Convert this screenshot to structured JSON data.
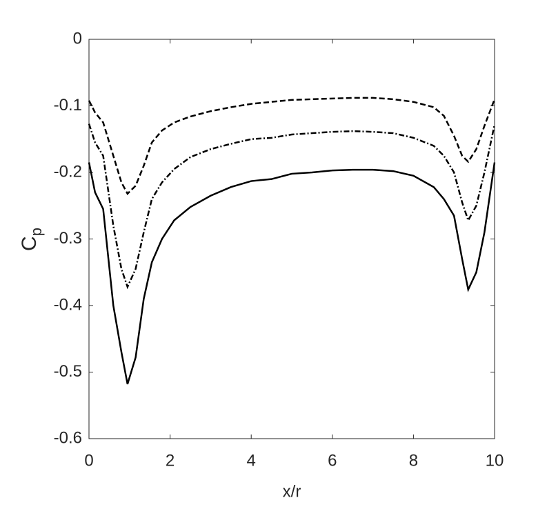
{
  "chart_data": {
    "type": "line",
    "xlabel": "x/r",
    "ylabel": "C",
    "ylabel_subscript": "p",
    "x": [
      0,
      0.15,
      0.35,
      0.6,
      0.8,
      0.95,
      1.15,
      1.35,
      1.55,
      1.8,
      2.1,
      2.5,
      3,
      3.5,
      4,
      4.5,
      5,
      5.5,
      6,
      6.5,
      7,
      7.5,
      8,
      8.5,
      8.75,
      9,
      9.2,
      9.35,
      9.55,
      9.75,
      10
    ],
    "series": [
      {
        "color": "#000000",
        "dash": "solid",
        "values": [
          -0.185,
          -0.23,
          -0.255,
          -0.4,
          -0.47,
          -0.518,
          -0.478,
          -0.39,
          -0.335,
          -0.3,
          -0.272,
          -0.252,
          -0.235,
          -0.222,
          -0.213,
          -0.21,
          -0.202,
          -0.2,
          -0.197,
          -0.196,
          -0.196,
          -0.198,
          -0.205,
          -0.222,
          -0.24,
          -0.265,
          -0.33,
          -0.376,
          -0.35,
          -0.29,
          -0.185
        ]
      },
      {
        "color": "#000000",
        "dash": "dashdot",
        "values": [
          -0.127,
          -0.155,
          -0.175,
          -0.28,
          -0.345,
          -0.372,
          -0.345,
          -0.29,
          -0.24,
          -0.215,
          -0.195,
          -0.177,
          -0.165,
          -0.157,
          -0.15,
          -0.148,
          -0.143,
          -0.141,
          -0.139,
          -0.138,
          -0.139,
          -0.141,
          -0.148,
          -0.16,
          -0.175,
          -0.2,
          -0.245,
          -0.272,
          -0.25,
          -0.2,
          -0.128
        ]
      },
      {
        "color": "#000000",
        "dash": "dashed",
        "values": [
          -0.092,
          -0.11,
          -0.125,
          -0.175,
          -0.215,
          -0.232,
          -0.22,
          -0.19,
          -0.155,
          -0.137,
          -0.125,
          -0.116,
          -0.108,
          -0.102,
          -0.097,
          -0.094,
          -0.091,
          -0.09,
          -0.089,
          -0.088,
          -0.088,
          -0.09,
          -0.094,
          -0.102,
          -0.115,
          -0.145,
          -0.175,
          -0.184,
          -0.165,
          -0.13,
          -0.09
        ]
      }
    ],
    "xlim": [
      0,
      10
    ],
    "xticks": [
      0,
      2,
      4,
      6,
      8,
      10
    ],
    "ylim": [
      -0.6,
      0
    ],
    "yticks": [
      -0.6,
      -0.5,
      -0.4,
      -0.3,
      -0.2,
      -0.1,
      0
    ],
    "grid": false
  }
}
